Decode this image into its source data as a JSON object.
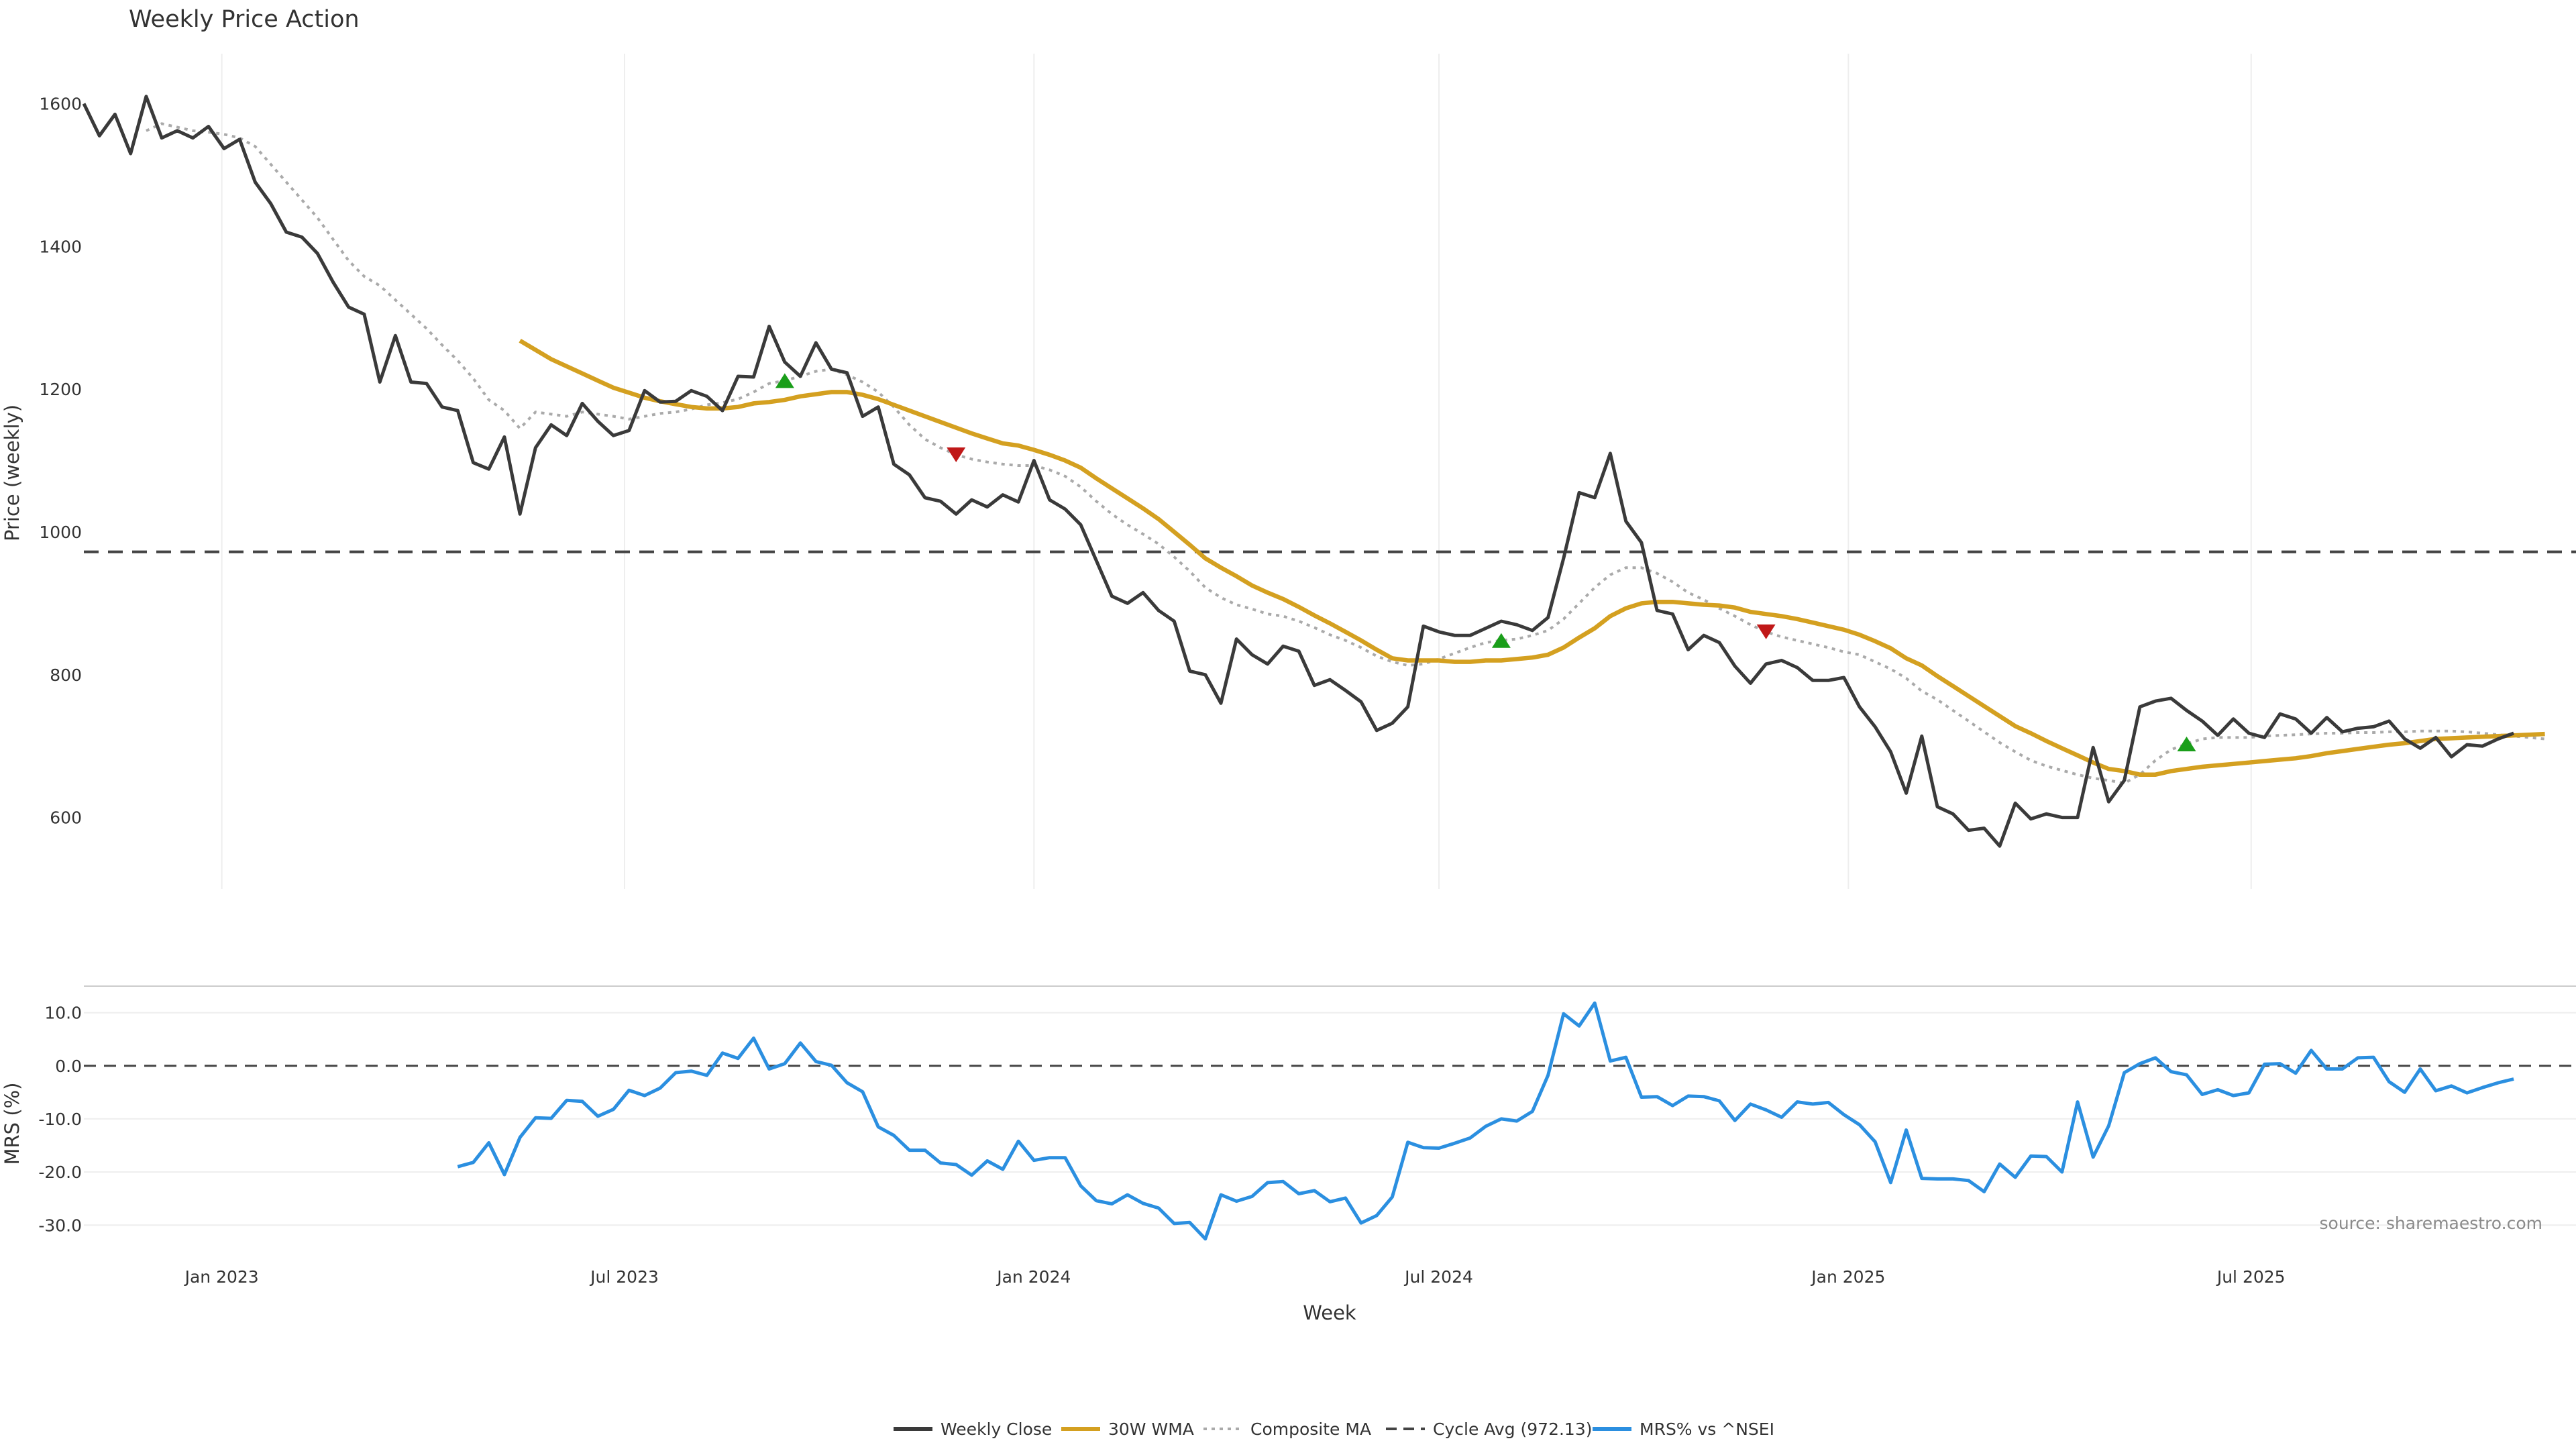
{
  "chart_data": {
    "type": "line",
    "title": "Weekly Price Action",
    "source": "source: sharemaestro.com",
    "x_axis": {
      "label": "Week",
      "ticks": [
        {
          "date": "2023-01-01",
          "label": "Jan 2023"
        },
        {
          "date": "2023-07-01",
          "label": "Jul 2023"
        },
        {
          "date": "2024-01-01",
          "label": "Jan 2024"
        },
        {
          "date": "2024-07-01",
          "label": "Jul 2024"
        },
        {
          "date": "2025-01-01",
          "label": "Jan 2025"
        },
        {
          "date": "2025-07-01",
          "label": "Jul 2025"
        }
      ],
      "range": [
        "2022-10-31",
        "2025-11-24"
      ],
      "week_start": "2022-10-31"
    },
    "price_panel": {
      "ylabel": "Price (weekly)",
      "ylim": [
        500,
        1670
      ],
      "yticks": [
        {
          "value": 600,
          "label": "600"
        },
        {
          "value": 800,
          "label": "800"
        },
        {
          "value": 1000,
          "label": "1000"
        },
        {
          "value": 1200,
          "label": "1200"
        },
        {
          "value": 1400,
          "label": "1400"
        },
        {
          "value": 1600,
          "label": "1600"
        }
      ],
      "cycle_avg": 972.13,
      "grid": "vertical",
      "series": {
        "weekly_close": [
          1600,
          1555,
          1585,
          1530,
          1610,
          1552,
          1562,
          1552,
          1568,
          1537,
          1550,
          1490,
          1460,
          1420,
          1413,
          1390,
          1350,
          1315,
          1305,
          1210,
          1275,
          1210,
          1208,
          1175,
          1170,
          1097,
          1088,
          1133,
          1025,
          1118,
          1150,
          1135,
          1180,
          1155,
          1135,
          1142,
          1198,
          1182,
          1183,
          1198,
          1190,
          1170,
          1218,
          1217,
          1288,
          1238,
          1218,
          1265,
          1228,
          1223,
          1162,
          1175,
          1095,
          1080,
          1048,
          1043,
          1025,
          1045,
          1035,
          1052,
          1042,
          1100,
          1045,
          1032,
          1010,
          960,
          910,
          900,
          915,
          890,
          875,
          805,
          800,
          760,
          850,
          828,
          815,
          840,
          833,
          785,
          793,
          778,
          762,
          722,
          732,
          755,
          868,
          860,
          855,
          855,
          865,
          875,
          870,
          862,
          880,
          963,
          1055,
          1048,
          1110,
          1015,
          985,
          890,
          885,
          835,
          855,
          845,
          812,
          788,
          815,
          820,
          810,
          792,
          792,
          796,
          755,
          727,
          692,
          634,
          714,
          615,
          605,
          582,
          585,
          560,
          620,
          598,
          605,
          600,
          600,
          698,
          622,
          652,
          755,
          763,
          767,
          750,
          735,
          715,
          738,
          718,
          712,
          745,
          738,
          718,
          740,
          720,
          725,
          727,
          735,
          710,
          697,
          712,
          685,
          702,
          700,
          710,
          718
        ],
        "wma_30w": [
          null,
          null,
          null,
          null,
          null,
          null,
          null,
          null,
          null,
          null,
          null,
          null,
          null,
          null,
          null,
          null,
          null,
          null,
          null,
          null,
          null,
          null,
          null,
          null,
          null,
          null,
          null,
          null,
          1268,
          1255,
          1242,
          1232,
          1222,
          1212,
          1202,
          1195,
          1188,
          1183,
          1179,
          1175,
          1173,
          1173,
          1175,
          1180,
          1182,
          1185,
          1190,
          1193,
          1196,
          1196,
          1192,
          1186,
          1178,
          1170,
          1162,
          1154,
          1146,
          1138,
          1131,
          1124,
          1121,
          1115,
          1108,
          1100,
          1090,
          1075,
          1061,
          1047,
          1033,
          1018,
          1000,
          982,
          963,
          950,
          938,
          925,
          915,
          906,
          895,
          883,
          872,
          860,
          848,
          835,
          823,
          820,
          820,
          820,
          818,
          818,
          820,
          820,
          822,
          824,
          828,
          838,
          852,
          865,
          882,
          893,
          900,
          902,
          902,
          900,
          898,
          897,
          894,
          888,
          885,
          882,
          878,
          873,
          868,
          863,
          856,
          847,
          837,
          823,
          813,
          798,
          784,
          770,
          756,
          742,
          728,
          718,
          707,
          697,
          687,
          677,
          668,
          665,
          660,
          660,
          665,
          668,
          671,
          673,
          675,
          677,
          679,
          681,
          683,
          686,
          690,
          693,
          696,
          699,
          702,
          704,
          707,
          710,
          711,
          712,
          713,
          714,
          715,
          716,
          717
        ],
        "composite_ma": [
          null,
          null,
          null,
          null,
          1562,
          1572,
          1567,
          1562,
          1560,
          1557,
          1552,
          1540,
          1515,
          1490,
          1465,
          1440,
          1410,
          1380,
          1358,
          1345,
          1325,
          1305,
          1285,
          1262,
          1240,
          1215,
          1185,
          1170,
          1145,
          1168,
          1165,
          1162,
          1168,
          1165,
          1162,
          1158,
          1162,
          1166,
          1168,
          1172,
          1178,
          1181,
          1186,
          1196,
          1208,
          1212,
          1218,
          1225,
          1228,
          1220,
          1210,
          1196,
          1175,
          1150,
          1130,
          1118,
          1108,
          1102,
          1098,
          1095,
          1093,
          1093,
          1087,
          1078,
          1063,
          1043,
          1025,
          1010,
          997,
          983,
          965,
          945,
          922,
          908,
          898,
          892,
          885,
          882,
          875,
          866,
          856,
          848,
          838,
          826,
          818,
          813,
          815,
          822,
          830,
          838,
          845,
          848,
          850,
          855,
          862,
          878,
          900,
          922,
          940,
          950,
          950,
          942,
          930,
          915,
          905,
          893,
          882,
          870,
          860,
          853,
          848,
          843,
          838,
          832,
          828,
          818,
          808,
          795,
          777,
          765,
          750,
          735,
          720,
          705,
          692,
          680,
          672,
          666,
          660,
          655,
          652,
          648,
          660,
          680,
          695,
          703,
          710,
          712,
          712,
          712,
          714,
          715,
          716,
          717,
          718,
          718,
          719,
          719,
          720,
          720,
          721,
          721,
          721,
          720,
          718,
          716,
          714,
          712,
          710
        ],
        "signals": [
          {
            "week": 45,
            "type": "buy"
          },
          {
            "week": 56,
            "type": "sell"
          },
          {
            "week": 91,
            "type": "buy"
          },
          {
            "week": 108,
            "type": "sell"
          },
          {
            "week": 135,
            "type": "buy"
          }
        ]
      }
    },
    "mrs_panel": {
      "ylabel": "MRS (%)",
      "ylim": [
        -33,
        15
      ],
      "yticks": [
        {
          "value": 10,
          "label": "10.0"
        },
        {
          "value": 0,
          "label": "0.0"
        },
        {
          "value": -10,
          "label": "-10.0"
        },
        {
          "value": -20,
          "label": "-20.0"
        },
        {
          "value": -30,
          "label": "-30.0"
        }
      ],
      "zero_line": 0,
      "series": {
        "mrs": [
          null,
          null,
          null,
          null,
          null,
          null,
          null,
          null,
          null,
          null,
          null,
          null,
          null,
          null,
          null,
          null,
          null,
          null,
          null,
          null,
          null,
          null,
          null,
          null,
          -19,
          -18.2,
          -14.5,
          -20.5,
          -13.5,
          -9.8,
          -9.9,
          -6.5,
          -6.7,
          -9.5,
          -8.2,
          -4.6,
          -5.6,
          -4.2,
          -1.3,
          -1.0,
          -1.8,
          2.4,
          1.4,
          5.2,
          -0.6,
          0.4,
          4.3,
          0.8,
          0.1,
          -3.2,
          -4.9,
          -11.5,
          -13.1,
          -15.9,
          -15.9,
          -18.3,
          -18.6,
          -20.6,
          -17.9,
          -19.5,
          -14.2,
          -17.8,
          -17.3,
          -17.3,
          -22.6,
          -25.4,
          -26.0,
          -24.3,
          -25.9,
          -26.8,
          -29.7,
          -29.5,
          -32.6,
          -24.3,
          -25.5,
          -24.6,
          -22.0,
          -21.8,
          -24.1,
          -23.5,
          -25.6,
          -24.9,
          -29.6,
          -28.2,
          -24.7,
          -14.4,
          -15.4,
          -15.5,
          -14.6,
          -13.6,
          -11.4,
          -10.0,
          -10.4,
          -8.6,
          -1.8,
          9.8,
          7.5,
          11.8,
          0.9,
          1.6,
          -5.9,
          -5.8,
          -7.5,
          -5.7,
          -5.8,
          -6.6,
          -10.3,
          -7.2,
          -8.3,
          -9.7,
          -6.8,
          -7.2,
          -6.9,
          -9.2,
          -11.1,
          -14.3,
          -22.0,
          -12.1,
          -21.2,
          -21.3,
          -21.3,
          -21.6,
          -23.7,
          -18.5,
          -21.0,
          -17.0,
          -17.1,
          -20.0,
          -6.8,
          -17.2,
          -11.3,
          -1.3,
          0.4,
          1.5,
          -1.1,
          -1.7,
          -5.4,
          -4.5,
          -5.6,
          -5.1,
          0.3,
          0.4,
          -1.4,
          2.9,
          -0.6,
          -0.6,
          1.5,
          1.6,
          -3.0,
          -5.0,
          -0.6,
          -4.7,
          -3.8,
          -5.1,
          -4.1,
          -3.2,
          -2.5
        ]
      }
    },
    "legend": {
      "placement": "bottom-center",
      "items": [
        {
          "label": "Weekly Close",
          "color": "#3a3a3a",
          "style": "solid"
        },
        {
          "label": "30W WMA",
          "color": "#d4a020",
          "style": "solid"
        },
        {
          "label": "Composite MA",
          "color": "#aaaaaa",
          "style": "dotted"
        },
        {
          "label": "Cycle Avg (972.13)",
          "color": "#444444",
          "style": "dashed"
        },
        {
          "label": "MRS% vs ^NSEI",
          "color": "#2b8fe0",
          "style": "solid"
        }
      ]
    },
    "colors": {
      "close": "#3a3a3a",
      "wma": "#d4a020",
      "composite": "#aaaaaa",
      "cycle": "#444444",
      "mrs": "#2b8fe0",
      "buy": "#1a9e1a",
      "sell": "#c01818"
    }
  }
}
